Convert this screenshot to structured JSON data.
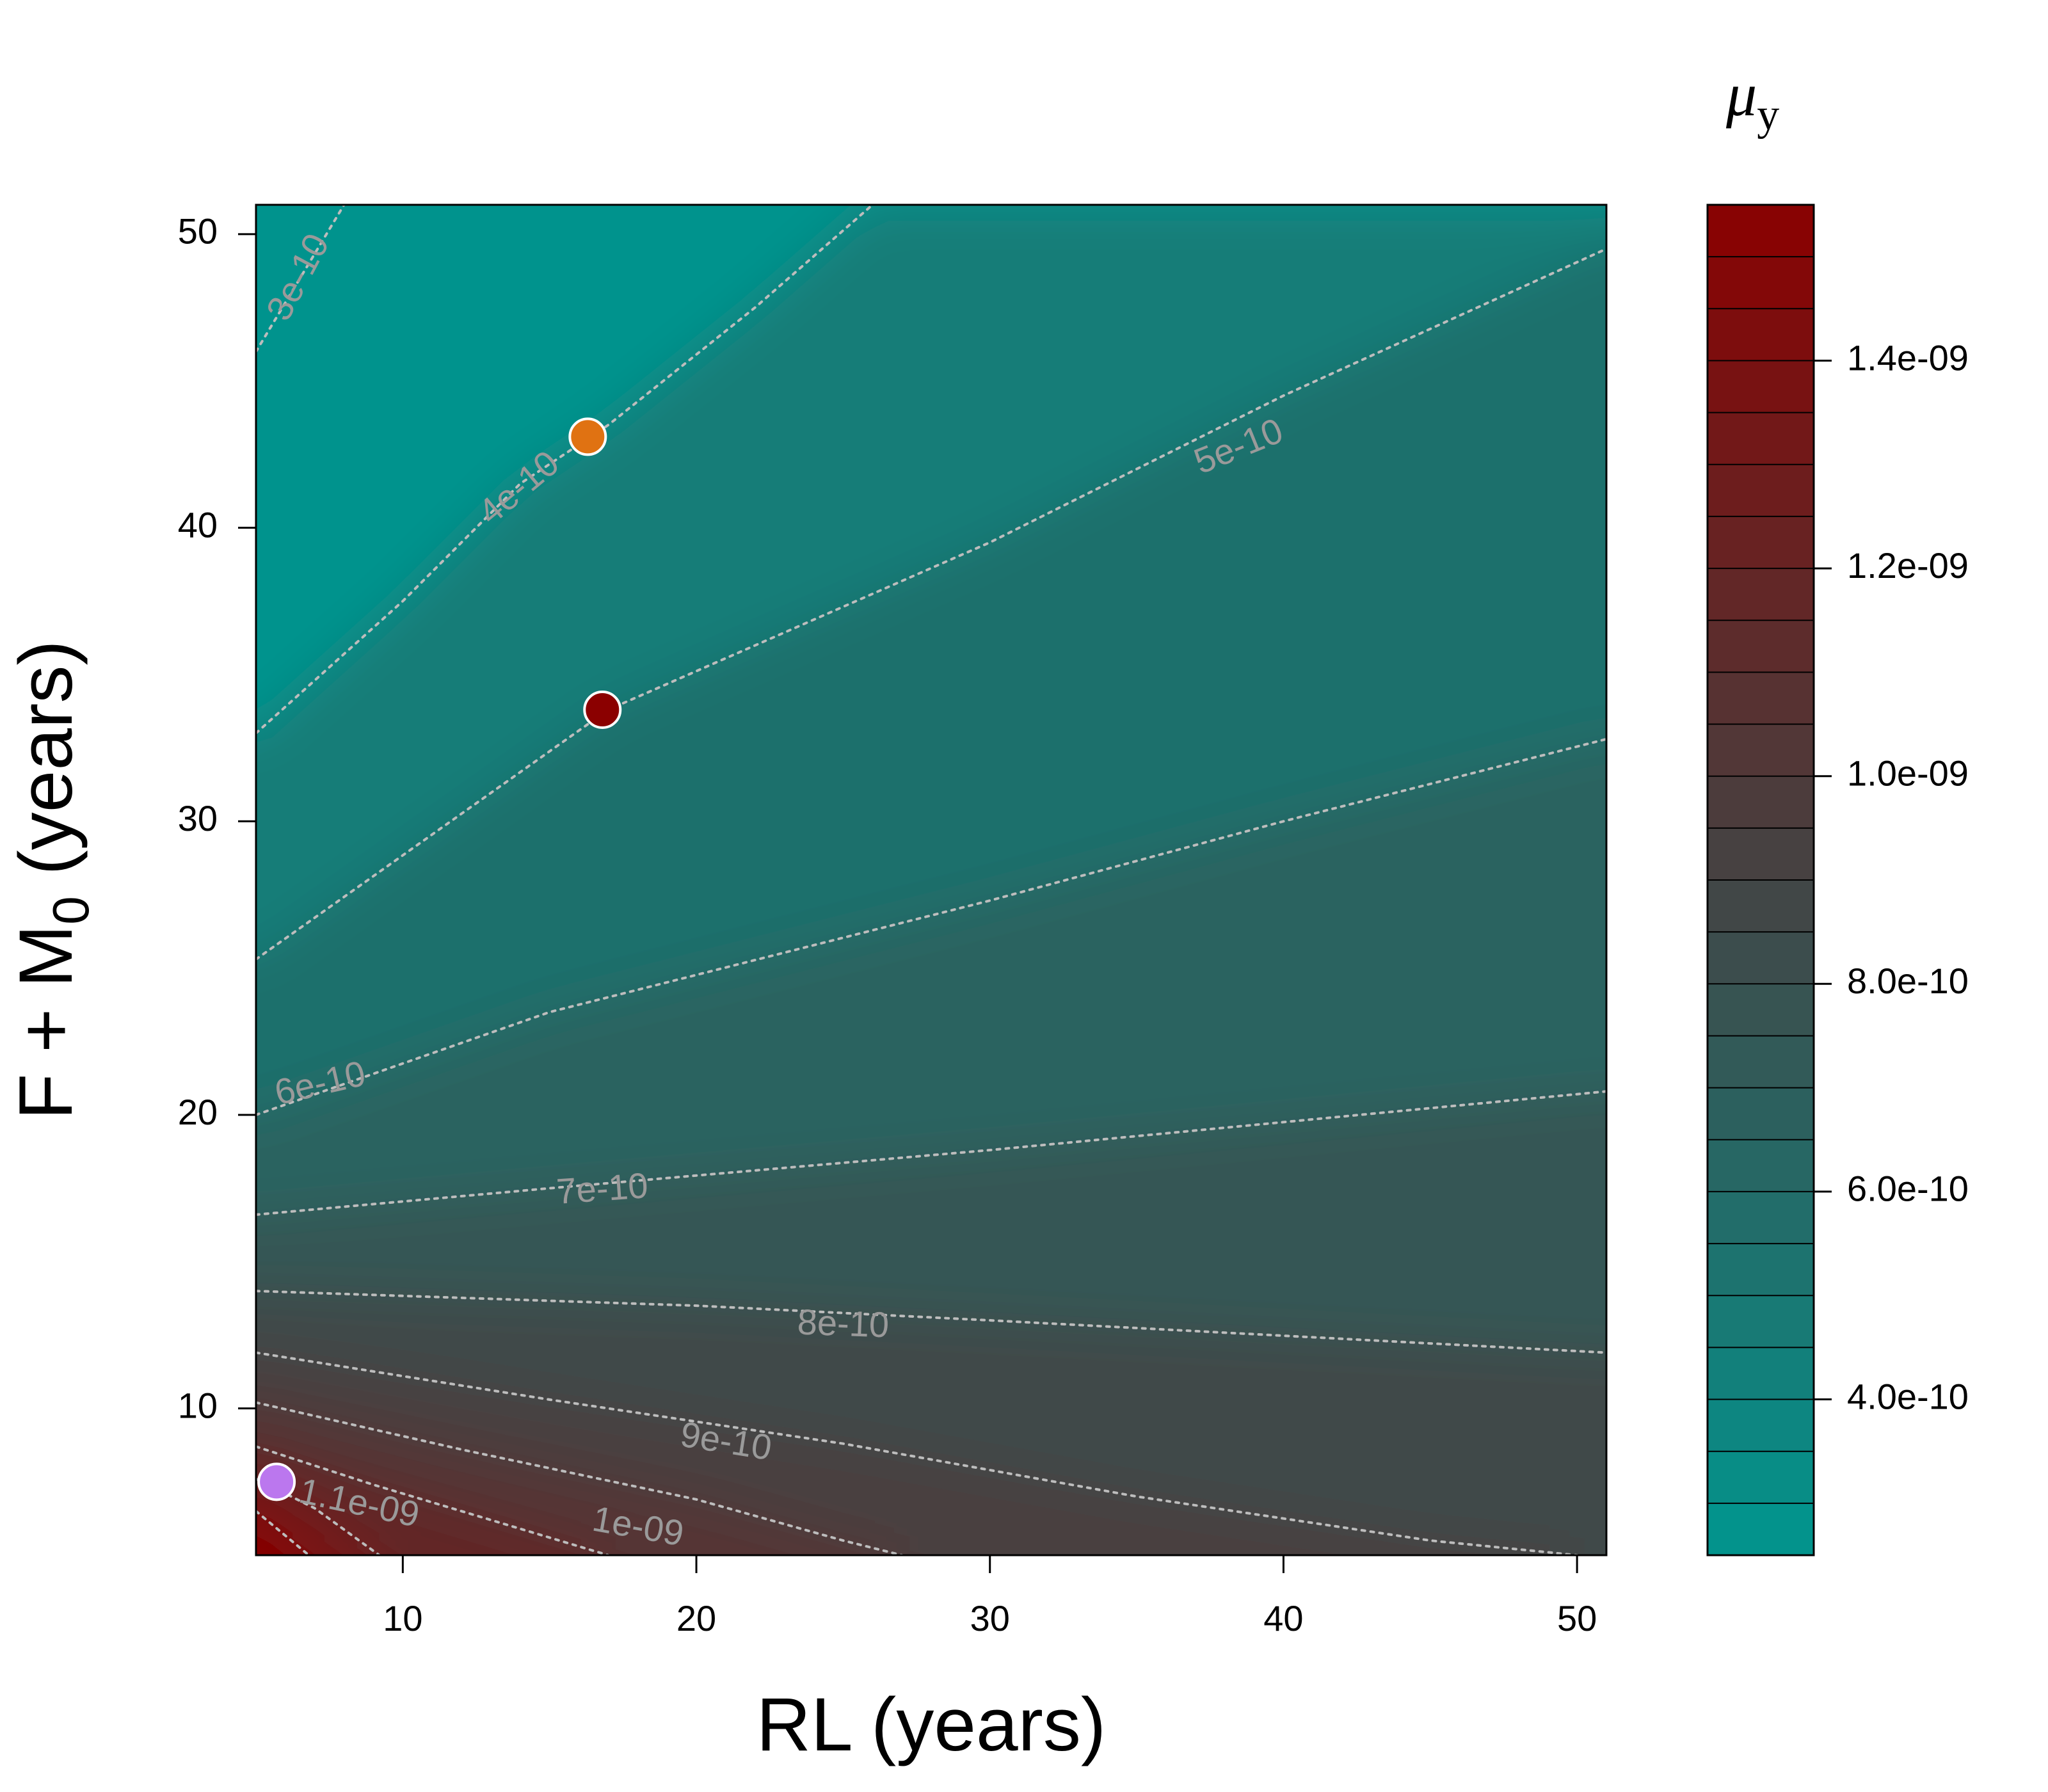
{
  "chart_data": {
    "type": "contour",
    "xlabel": "RL (years)",
    "ylabel_main": "F + M",
    "ylabel_sub": "0",
    "ylabel_tail": " (years)",
    "xlim": [
      5,
      51
    ],
    "ylim": [
      5,
      51
    ],
    "x_ticks": [
      {
        "value": 10,
        "label": "10"
      },
      {
        "value": 20,
        "label": "20"
      },
      {
        "value": 30,
        "label": "30"
      },
      {
        "value": 40,
        "label": "40"
      },
      {
        "value": 50,
        "label": "50"
      }
    ],
    "y_ticks": [
      {
        "value": 10,
        "label": "10"
      },
      {
        "value": 20,
        "label": "20"
      },
      {
        "value": 30,
        "label": "30"
      },
      {
        "value": 40,
        "label": "40"
      },
      {
        "value": 50,
        "label": "50"
      }
    ],
    "contours": [
      {
        "level": "3e-10",
        "points": [
          [
            5,
            46
          ],
          [
            8,
            51
          ]
        ]
      },
      {
        "level": "4e-10",
        "points": [
          [
            5,
            33
          ],
          [
            10,
            37.5
          ],
          [
            14,
            41.5
          ],
          [
            17,
            43.5
          ],
          [
            22,
            47.5
          ],
          [
            26,
            51
          ]
        ]
      },
      {
        "level": "5e-10",
        "points": [
          [
            5,
            25.3
          ],
          [
            17,
            33.8
          ],
          [
            30,
            39.5
          ],
          [
            40,
            44.5
          ],
          [
            51,
            49.5
          ]
        ]
      },
      {
        "level": "6e-10",
        "points": [
          [
            5,
            20
          ],
          [
            15,
            23.5
          ],
          [
            30,
            27.3
          ],
          [
            40,
            30
          ],
          [
            51,
            32.8
          ]
        ]
      },
      {
        "level": "7e-10",
        "points": [
          [
            5,
            16.6
          ],
          [
            15,
            17.5
          ],
          [
            30,
            18.8
          ],
          [
            51,
            20.8
          ]
        ]
      },
      {
        "level": "8e-10",
        "points": [
          [
            5,
            14
          ],
          [
            20,
            13.5
          ],
          [
            30,
            13
          ],
          [
            51,
            11.9
          ]
        ]
      },
      {
        "level": "9e-10",
        "points": [
          [
            5,
            11.9
          ],
          [
            15,
            10.3
          ],
          [
            25,
            8.8
          ],
          [
            35,
            7
          ],
          [
            45,
            5.5
          ],
          [
            50,
            5
          ]
        ]
      },
      {
        "level": "1e-09",
        "points": [
          [
            5,
            10.2
          ],
          [
            12,
            8.6
          ],
          [
            20,
            6.9
          ],
          [
            25,
            5.5
          ],
          [
            27,
            5
          ]
        ]
      },
      {
        "level": "1.1e-09",
        "points": [
          [
            5,
            8.7
          ],
          [
            9,
            7.4
          ],
          [
            13,
            6.2
          ],
          [
            16,
            5.3
          ],
          [
            17,
            5
          ]
        ]
      },
      {
        "level": "",
        "points": [
          [
            5,
            7.6
          ],
          [
            7,
            6.6
          ],
          [
            9.2,
            5
          ]
        ]
      },
      {
        "level": "",
        "points": [
          [
            5,
            6.5
          ],
          [
            6.8,
            5
          ]
        ]
      }
    ],
    "contour_labels": [
      {
        "text": "3e-10",
        "x": 6.5,
        "y": 48.5,
        "angle": -62
      },
      {
        "text": "4e-10",
        "x": 14,
        "y": 41.3,
        "angle": -40
      },
      {
        "text": "5e-10",
        "x": 38.5,
        "y": 42.7,
        "angle": -22
      },
      {
        "text": "6e-10",
        "x": 7.2,
        "y": 21,
        "angle": -13
      },
      {
        "text": "7e-10",
        "x": 16.8,
        "y": 17.4,
        "angle": -4
      },
      {
        "text": "8e-10",
        "x": 25,
        "y": 12.8,
        "angle": 2
      },
      {
        "text": "9e-10",
        "x": 21,
        "y": 8.8,
        "angle": 9
      },
      {
        "text": "1e-09",
        "x": 18,
        "y": 5.9,
        "angle": 10
      },
      {
        "text": "1.1e-09",
        "x": 8.5,
        "y": 6.7,
        "angle": 12
      }
    ],
    "points": [
      {
        "x": 16.3,
        "y": 43.1,
        "color": "#e07212"
      },
      {
        "x": 16.8,
        "y": 33.8,
        "color": "#8b0000"
      },
      {
        "x": 5.7,
        "y": 7.5,
        "color": "#bb77ee"
      }
    ],
    "legend": {
      "title_main": "μ",
      "title_sub": "y",
      "range": [
        2.5e-10,
        1.55e-09
      ],
      "n_bands": 26,
      "ticks": [
        {
          "value": 4e-10,
          "label": "4.0e-10"
        },
        {
          "value": 6e-10,
          "label": "6.0e-10"
        },
        {
          "value": 8e-10,
          "label": "8.0e-10"
        },
        {
          "value": 1e-09,
          "label": "1.0e-09"
        },
        {
          "value": 1.2e-09,
          "label": "1.2e-09"
        },
        {
          "value": 1.4e-09,
          "label": "1.4e-09"
        }
      ]
    },
    "colors": {
      "low": "#00968f",
      "mid": "#444444",
      "high": "#8b0000",
      "contour_line": "#bdbdbd"
    }
  }
}
